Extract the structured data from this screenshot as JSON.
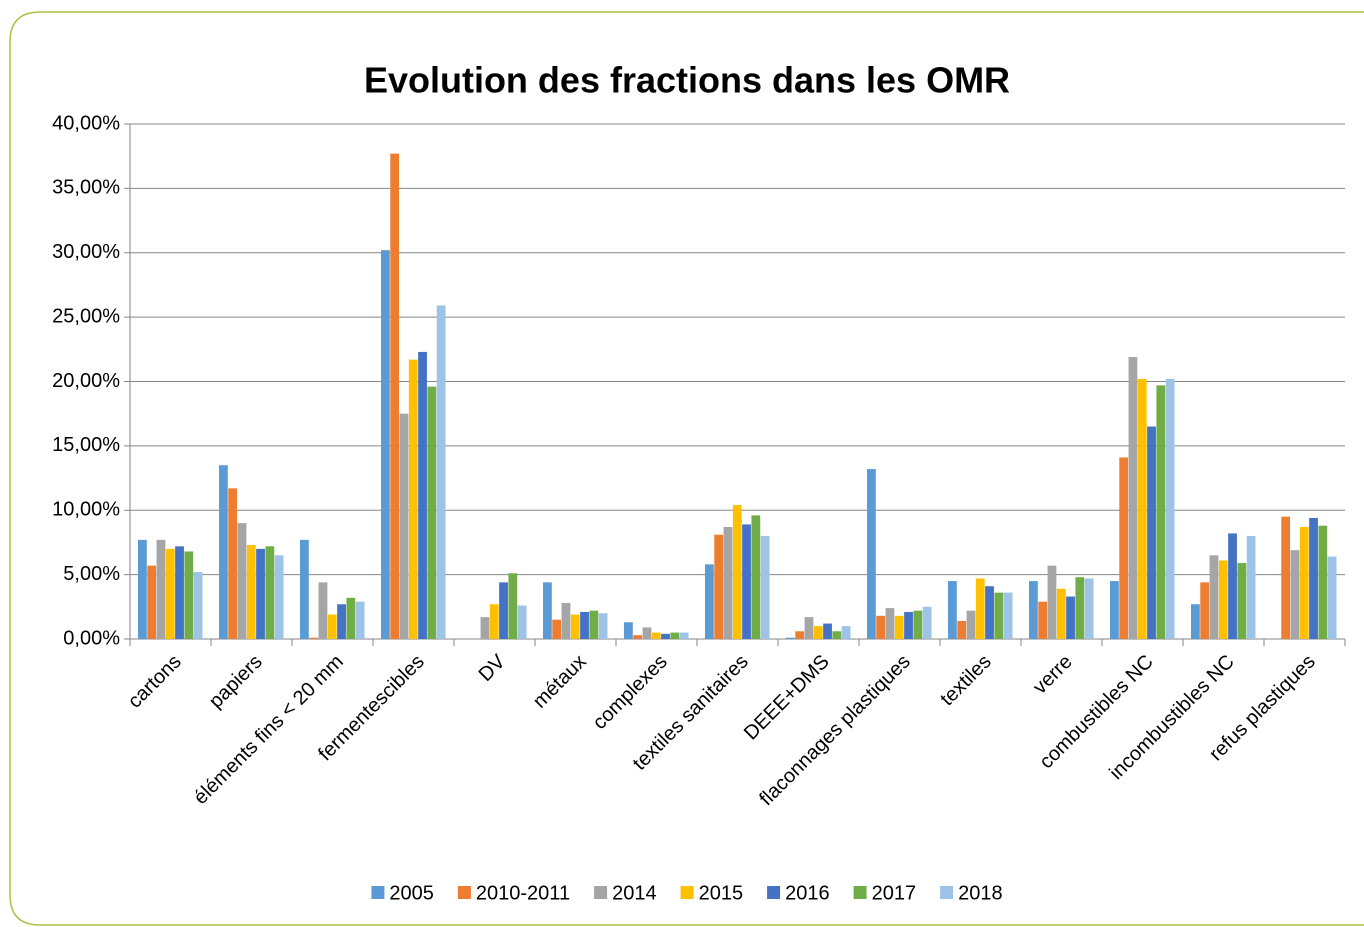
{
  "chart_data": {
    "type": "bar",
    "title": "Evolution des fractions dans les OMR",
    "categories": [
      "cartons",
      "papiers",
      "éléments fins < 20 mm",
      "fermentescibles",
      "DV",
      "métaux",
      "complexes",
      "textiles sanitaires",
      "DEEE+DMS",
      "flaconnages plastiques",
      "textiles",
      "verre",
      "combustibles NC",
      "incombustibles NC",
      "refus plastiques"
    ],
    "series": [
      {
        "name": "2005",
        "color": "#5b9bd5",
        "values": [
          7.7,
          13.5,
          7.7,
          30.2,
          null,
          4.4,
          1.3,
          5.8,
          0.1,
          13.2,
          4.5,
          4.5,
          4.5,
          2.7,
          null
        ]
      },
      {
        "name": "2010-2011",
        "color": "#ed7d31",
        "values": [
          5.7,
          11.7,
          0.1,
          37.7,
          null,
          1.5,
          0.3,
          8.1,
          0.6,
          1.8,
          1.4,
          2.9,
          14.1,
          4.4,
          9.5
        ]
      },
      {
        "name": "2014",
        "color": "#a5a5a5",
        "values": [
          7.7,
          9.0,
          4.4,
          17.5,
          1.7,
          2.8,
          0.9,
          8.7,
          1.7,
          2.4,
          2.2,
          5.7,
          21.9,
          6.5,
          6.9
        ]
      },
      {
        "name": "2015",
        "color": "#ffc000",
        "values": [
          7.0,
          7.3,
          1.9,
          21.7,
          2.7,
          1.9,
          0.5,
          10.4,
          1.0,
          1.8,
          4.7,
          3.9,
          20.2,
          6.1,
          8.7
        ]
      },
      {
        "name": "2016",
        "color": "#4472c4",
        "values": [
          7.2,
          7.0,
          2.7,
          22.3,
          4.4,
          2.1,
          0.4,
          8.9,
          1.2,
          2.1,
          4.1,
          3.3,
          16.5,
          8.2,
          9.4
        ]
      },
      {
        "name": "2017",
        "color": "#70ad47",
        "values": [
          6.8,
          7.2,
          3.2,
          19.6,
          5.1,
          2.2,
          0.5,
          9.6,
          0.6,
          2.2,
          3.6,
          4.8,
          19.7,
          5.9,
          8.8
        ]
      },
      {
        "name": "2018",
        "color": "#9dc3e6",
        "values": [
          5.2,
          6.5,
          2.9,
          25.9,
          2.6,
          2.0,
          0.5,
          8.0,
          1.0,
          2.5,
          3.6,
          4.7,
          20.2,
          8.0,
          6.4
        ]
      }
    ],
    "ylim": [
      0,
      40
    ],
    "yticks": [
      {
        "value": 0,
        "label": "0,00%"
      },
      {
        "value": 5,
        "label": "5,00%"
      },
      {
        "value": 10,
        "label": "10,00%"
      },
      {
        "value": 15,
        "label": "15,00%"
      },
      {
        "value": 20,
        "label": "20,00%"
      },
      {
        "value": 25,
        "label": "25,00%"
      },
      {
        "value": 30,
        "label": "30,00%"
      },
      {
        "value": 35,
        "label": "35,00%"
      },
      {
        "value": 40,
        "label": "40,00%"
      }
    ],
    "grid": true,
    "legend": "bottom"
  }
}
